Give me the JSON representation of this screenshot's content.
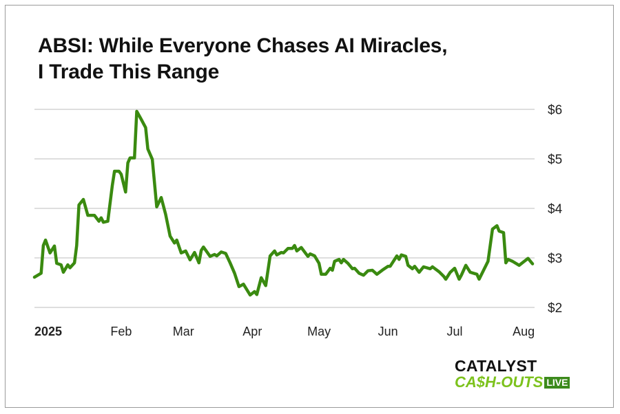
{
  "chart_data": {
    "type": "line",
    "title": "ABSI: While Everyone Chases AI Miracles, I Trade This Range",
    "title_lines": [
      "ABSI: While Everyone Chases AI Miracles,",
      "I Trade This Range"
    ],
    "xlabel": "",
    "ylabel": "",
    "x_ticks": [
      {
        "date": "2025-01-01",
        "label": "2025"
      },
      {
        "date": "2025-02-01",
        "label": "Feb"
      },
      {
        "date": "2025-03-01",
        "label": "Mar"
      },
      {
        "date": "2025-04-01",
        "label": "Apr"
      },
      {
        "date": "2025-05-01",
        "label": "May"
      },
      {
        "date": "2025-06-01",
        "label": "Jun"
      },
      {
        "date": "2025-07-01",
        "label": "Jul"
      },
      {
        "date": "2025-08-01",
        "label": "Aug"
      }
    ],
    "y_ticks": [
      {
        "value": 6,
        "label": "$6"
      },
      {
        "value": 5,
        "label": "$5"
      },
      {
        "value": 4,
        "label": "$4"
      },
      {
        "value": 3,
        "label": "$3"
      },
      {
        "value": 2,
        "label": "$2"
      }
    ],
    "ylim": [
      2,
      6
    ],
    "xlim": [
      "2024-12-24",
      "2025-08-05"
    ],
    "y_axis_position": "right",
    "grid": "horizontal",
    "line_color": "#3a8a10",
    "series": [
      {
        "points": [
          [
            "2024-12-24",
            2.61
          ],
          [
            "2024-12-27",
            2.69
          ],
          [
            "2024-12-28",
            3.25
          ],
          [
            "2024-12-29",
            3.36
          ],
          [
            "2024-12-31",
            3.1
          ],
          [
            "2025-01-02",
            3.24
          ],
          [
            "2025-01-03",
            2.89
          ],
          [
            "2025-01-05",
            2.86
          ],
          [
            "2025-01-06",
            2.71
          ],
          [
            "2025-01-08",
            2.86
          ],
          [
            "2025-01-09",
            2.8
          ],
          [
            "2025-01-11",
            2.9
          ],
          [
            "2025-01-12",
            3.25
          ],
          [
            "2025-01-13",
            4.07
          ],
          [
            "2025-01-15",
            4.18
          ],
          [
            "2025-01-17",
            3.86
          ],
          [
            "2025-01-20",
            3.86
          ],
          [
            "2025-01-22",
            3.74
          ],
          [
            "2025-01-23",
            3.81
          ],
          [
            "2025-01-24",
            3.72
          ],
          [
            "2025-01-26",
            3.74
          ],
          [
            "2025-01-28",
            4.46
          ],
          [
            "2025-01-29",
            4.75
          ],
          [
            "2025-01-31",
            4.75
          ],
          [
            "2025-02-01",
            4.69
          ],
          [
            "2025-02-03",
            4.33
          ],
          [
            "2025-02-04",
            4.92
          ],
          [
            "2025-02-05",
            5.02
          ],
          [
            "2025-02-07",
            5.02
          ],
          [
            "2025-02-08",
            5.96
          ],
          [
            "2025-02-10",
            5.8
          ],
          [
            "2025-02-12",
            5.63
          ],
          [
            "2025-02-13",
            5.2
          ],
          [
            "2025-02-15",
            4.99
          ],
          [
            "2025-02-17",
            4.03
          ],
          [
            "2025-02-19",
            4.22
          ],
          [
            "2025-02-21",
            3.88
          ],
          [
            "2025-02-23",
            3.44
          ],
          [
            "2025-02-25",
            3.3
          ],
          [
            "2025-02-26",
            3.36
          ],
          [
            "2025-02-28",
            3.1
          ],
          [
            "2025-03-02",
            3.14
          ],
          [
            "2025-03-04",
            2.96
          ],
          [
            "2025-03-06",
            3.11
          ],
          [
            "2025-03-08",
            2.9
          ],
          [
            "2025-03-09",
            3.15
          ],
          [
            "2025-03-10",
            3.22
          ],
          [
            "2025-03-13",
            3.03
          ],
          [
            "2025-03-15",
            3.07
          ],
          [
            "2025-03-16",
            3.04
          ],
          [
            "2025-03-18",
            3.12
          ],
          [
            "2025-03-20",
            3.09
          ],
          [
            "2025-03-22",
            2.9
          ],
          [
            "2025-03-24",
            2.69
          ],
          [
            "2025-03-26",
            2.42
          ],
          [
            "2025-03-28",
            2.47
          ],
          [
            "2025-03-31",
            2.25
          ],
          [
            "2025-04-02",
            2.32
          ],
          [
            "2025-04-03",
            2.26
          ],
          [
            "2025-04-05",
            2.6
          ],
          [
            "2025-04-07",
            2.44
          ],
          [
            "2025-04-09",
            3.04
          ],
          [
            "2025-04-11",
            3.14
          ],
          [
            "2025-04-12",
            3.06
          ],
          [
            "2025-04-14",
            3.11
          ],
          [
            "2025-04-15",
            3.1
          ],
          [
            "2025-04-17",
            3.19
          ],
          [
            "2025-04-19",
            3.19
          ],
          [
            "2025-04-20",
            3.25
          ],
          [
            "2025-04-21",
            3.14
          ],
          [
            "2025-04-23",
            3.21
          ],
          [
            "2025-04-26",
            3.03
          ],
          [
            "2025-04-27",
            3.08
          ],
          [
            "2025-04-29",
            3.04
          ],
          [
            "2025-05-01",
            2.89
          ],
          [
            "2025-05-02",
            2.67
          ],
          [
            "2025-05-04",
            2.67
          ],
          [
            "2025-05-06",
            2.79
          ],
          [
            "2025-05-07",
            2.75
          ],
          [
            "2025-05-08",
            2.93
          ],
          [
            "2025-05-10",
            2.97
          ],
          [
            "2025-05-11",
            2.9
          ],
          [
            "2025-05-12",
            2.97
          ],
          [
            "2025-05-14",
            2.89
          ],
          [
            "2025-05-16",
            2.78
          ],
          [
            "2025-05-17",
            2.79
          ],
          [
            "2025-05-19",
            2.69
          ],
          [
            "2025-05-21",
            2.65
          ],
          [
            "2025-05-23",
            2.74
          ],
          [
            "2025-05-25",
            2.75
          ],
          [
            "2025-05-27",
            2.67
          ],
          [
            "2025-05-30",
            2.77
          ],
          [
            "2025-06-01",
            2.83
          ],
          [
            "2025-06-02",
            2.83
          ],
          [
            "2025-06-05",
            3.04
          ],
          [
            "2025-06-06",
            2.97
          ],
          [
            "2025-06-07",
            3.06
          ],
          [
            "2025-06-09",
            3.03
          ],
          [
            "2025-06-10",
            2.85
          ],
          [
            "2025-06-12",
            2.78
          ],
          [
            "2025-06-13",
            2.83
          ],
          [
            "2025-06-15",
            2.71
          ],
          [
            "2025-06-17",
            2.82
          ],
          [
            "2025-06-20",
            2.78
          ],
          [
            "2025-06-21",
            2.82
          ],
          [
            "2025-06-24",
            2.72
          ],
          [
            "2025-06-26",
            2.63
          ],
          [
            "2025-06-27",
            2.57
          ],
          [
            "2025-06-29",
            2.71
          ],
          [
            "2025-07-01",
            2.79
          ],
          [
            "2025-07-03",
            2.57
          ],
          [
            "2025-07-04",
            2.65
          ],
          [
            "2025-07-06",
            2.85
          ],
          [
            "2025-07-08",
            2.71
          ],
          [
            "2025-07-11",
            2.67
          ],
          [
            "2025-07-12",
            2.57
          ],
          [
            "2025-07-16",
            2.93
          ],
          [
            "2025-07-18",
            3.58
          ],
          [
            "2025-07-20",
            3.65
          ],
          [
            "2025-07-21",
            3.54
          ],
          [
            "2025-07-23",
            3.51
          ],
          [
            "2025-07-24",
            2.9
          ],
          [
            "2025-07-25",
            2.97
          ],
          [
            "2025-07-27",
            2.93
          ],
          [
            "2025-07-30",
            2.85
          ],
          [
            "2025-08-03",
            2.99
          ],
          [
            "2025-08-05",
            2.88
          ]
        ]
      }
    ]
  },
  "logo": {
    "line1": "CATALYST",
    "line2": "CA$H-OUTS",
    "badge": "LIVE"
  }
}
